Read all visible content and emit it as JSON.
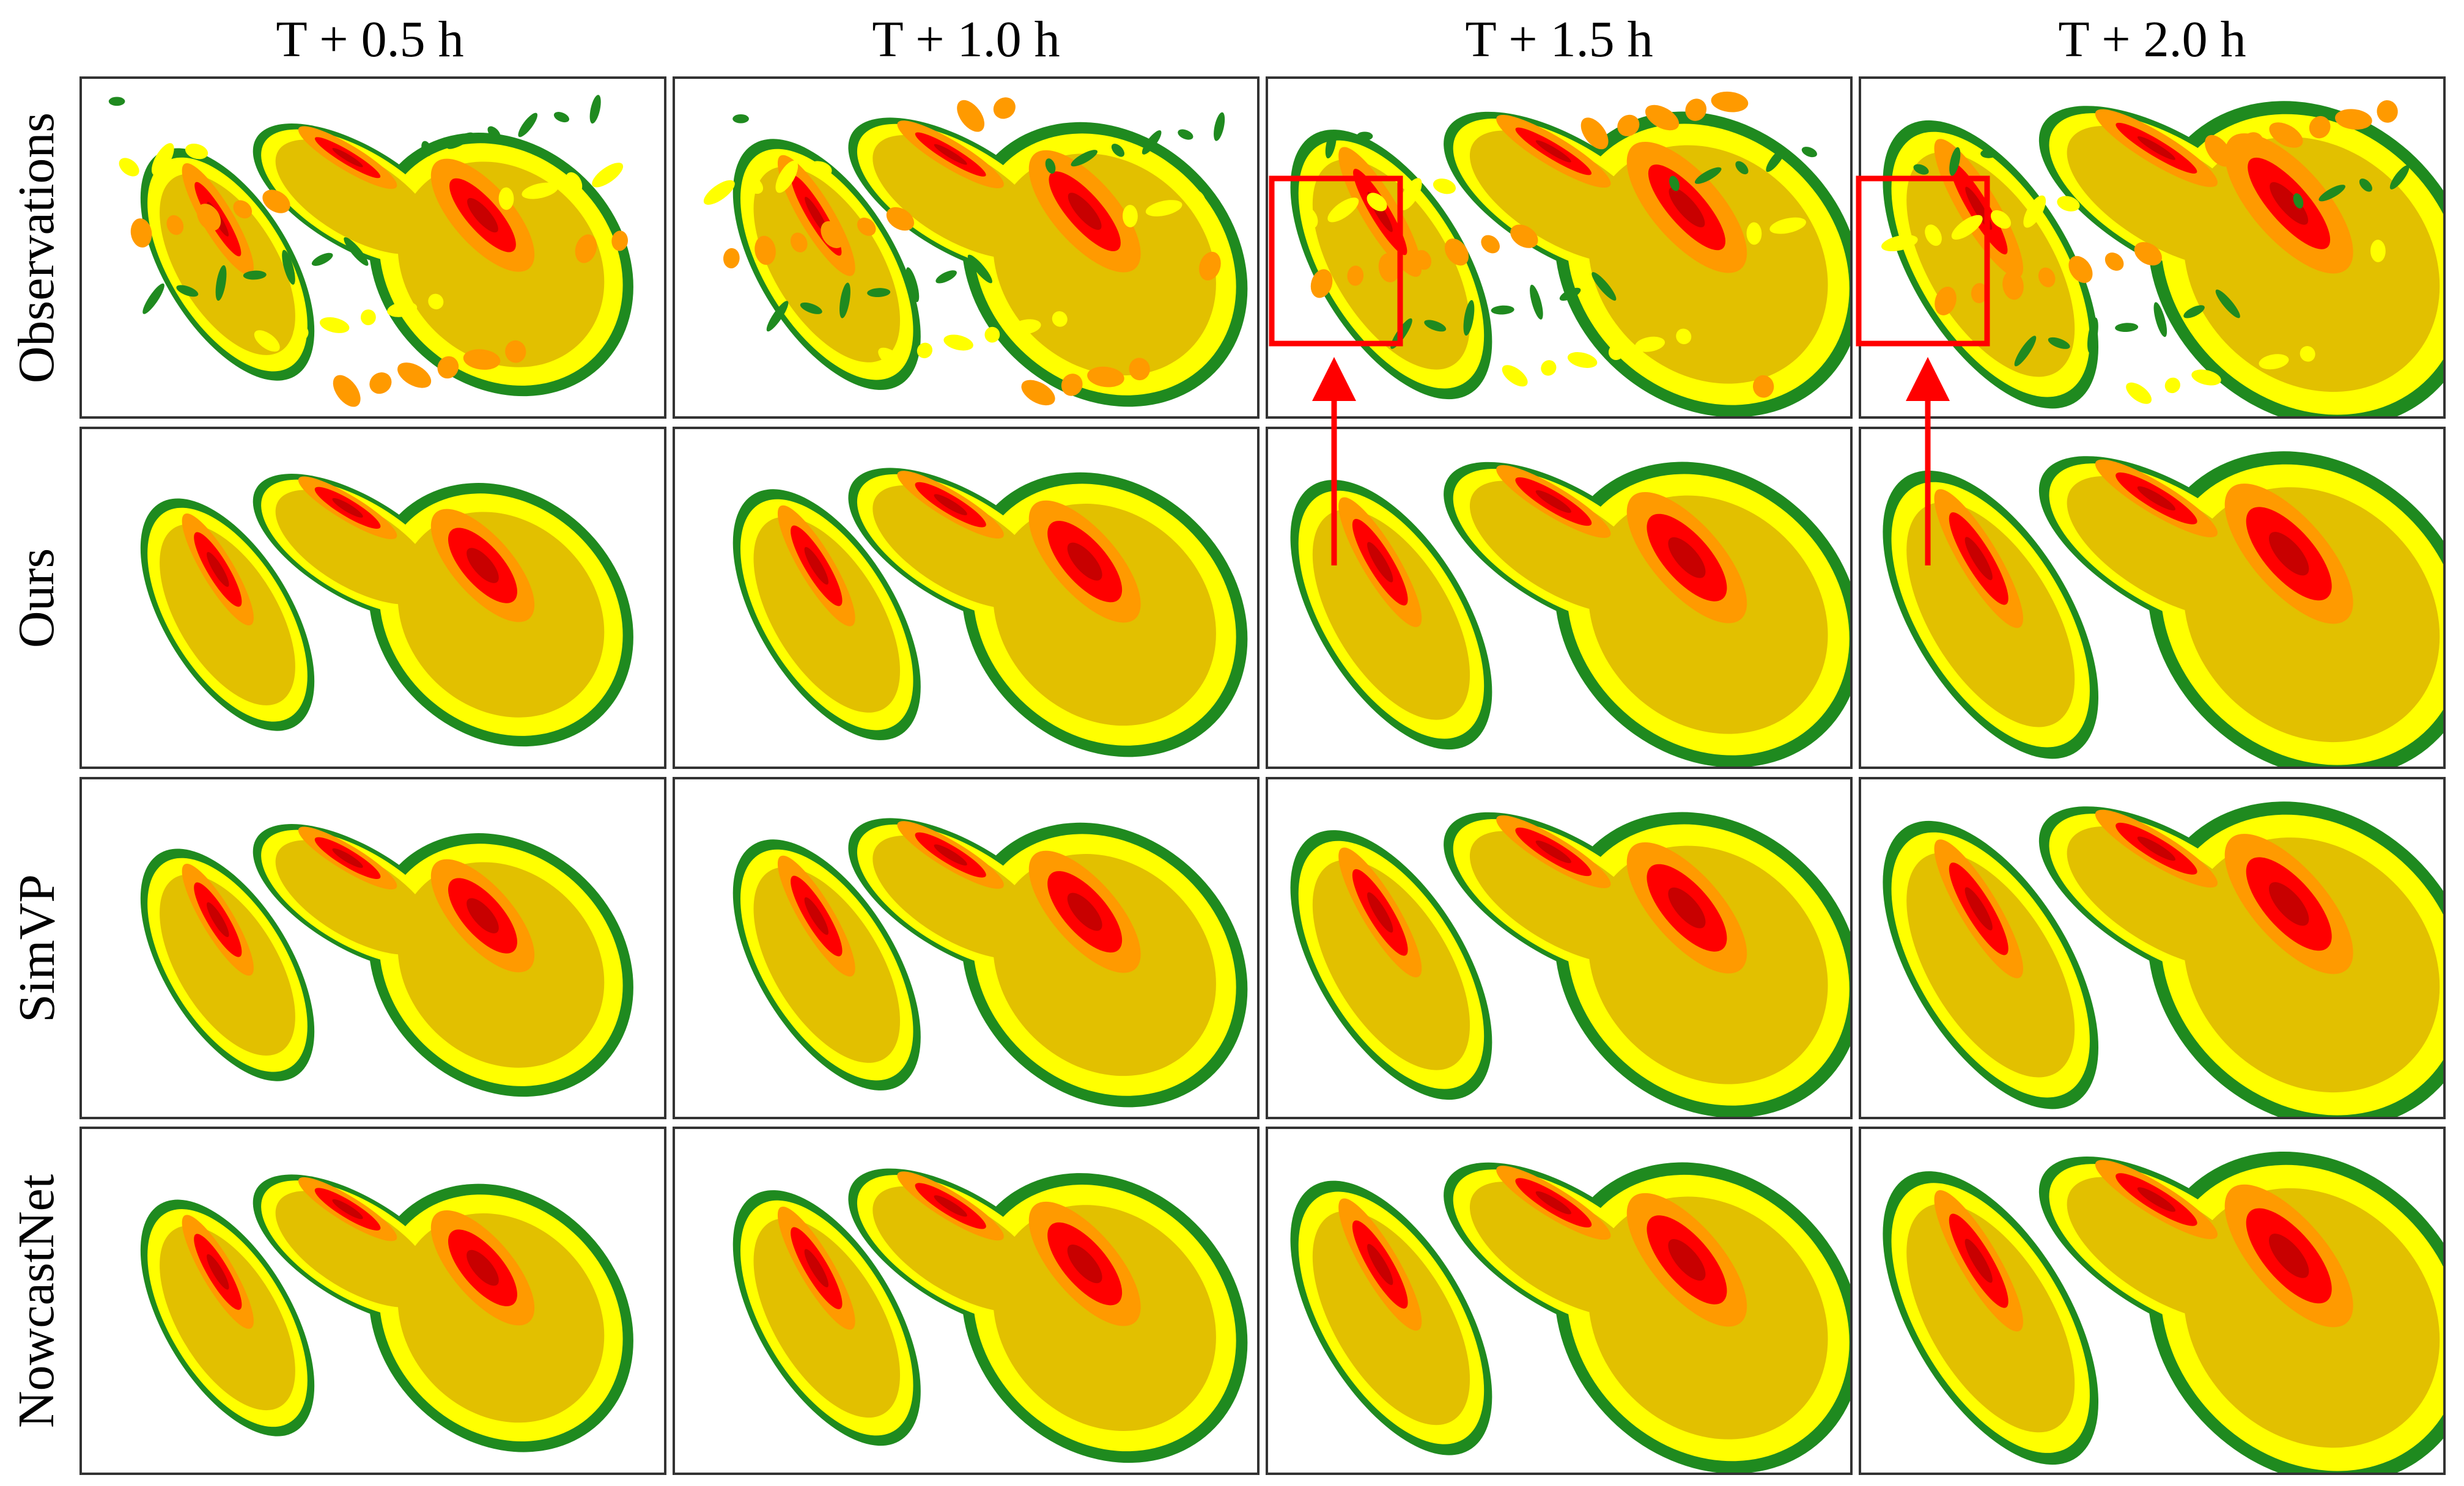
{
  "columns": [
    {
      "label": "T + 0.5 h"
    },
    {
      "label": "T + 1.0 h"
    },
    {
      "label": "T + 1.5 h"
    },
    {
      "label": "T + 2.0 h"
    }
  ],
  "rows": [
    {
      "label": "Observations"
    },
    {
      "label": "Ours"
    },
    {
      "label": "SimVP"
    },
    {
      "label": "NowcastNet"
    }
  ],
  "colors": {
    "green": "#1f8a1f",
    "yellow": "#ffff00",
    "gold": "#e2c000",
    "orange": "#ff9a00",
    "red": "#ff0000",
    "darkred": "#c80000",
    "highlight": "#ff0000",
    "border": "#333333"
  }
}
